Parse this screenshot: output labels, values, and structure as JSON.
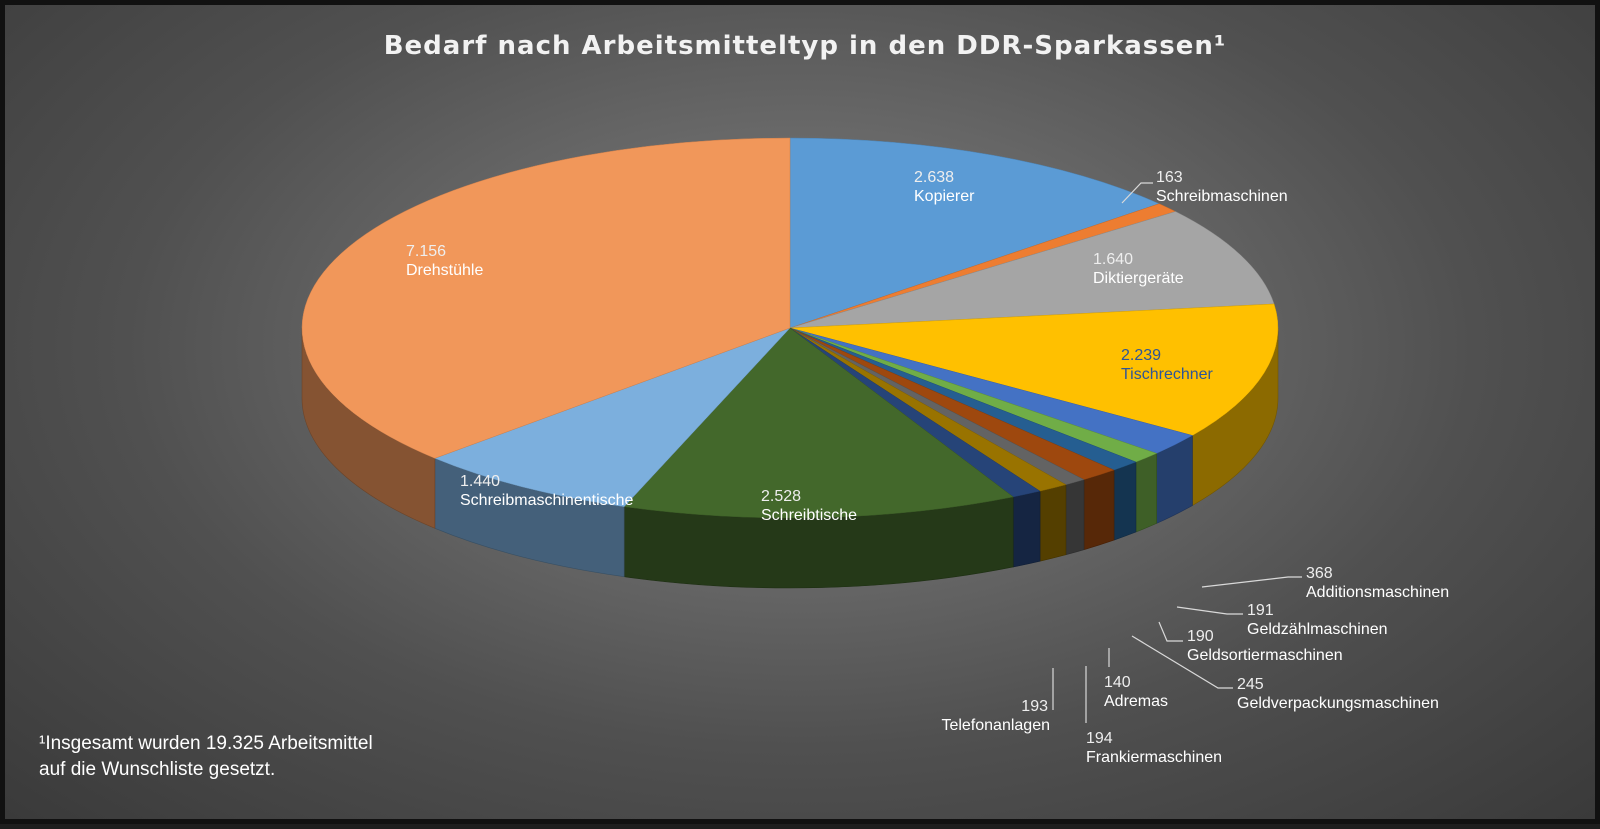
{
  "chart_data": {
    "type": "pie",
    "title": "Bedarf nach Arbeitsmitteltyp in den DDR-Sparkassen¹",
    "three_d": true,
    "slices": [
      {
        "label": "Kopierer",
        "value": 2638,
        "value_text": "2.638",
        "color": "#5b9bd5"
      },
      {
        "label": "Schreibmaschinen",
        "value": 163,
        "value_text": "163",
        "color": "#ed7d31"
      },
      {
        "label": "Diktiergeräte",
        "value": 1640,
        "value_text": "1.640",
        "color": "#a5a5a5"
      },
      {
        "label": "Tischrechner",
        "value": 2239,
        "value_text": "2.239",
        "color": "#ffc000"
      },
      {
        "label": "Additionsmaschinen",
        "value": 368,
        "value_text": "368",
        "color": "#4472c4"
      },
      {
        "label": "Geldzählmaschinen",
        "value": 191,
        "value_text": "191",
        "color": "#70ad47"
      },
      {
        "label": "Geldsortiermaschinen",
        "value": 190,
        "value_text": "190",
        "color": "#255e91"
      },
      {
        "label": "Geldverpackungsmaschinen",
        "value": 245,
        "value_text": "245",
        "color": "#9e480e"
      },
      {
        "label": "Adremas",
        "value": 140,
        "value_text": "140",
        "color": "#636363"
      },
      {
        "label": "Frankiermaschinen",
        "value": 194,
        "value_text": "194",
        "color": "#997300"
      },
      {
        "label": "Telefonanlagen",
        "value": 193,
        "value_text": "193",
        "color": "#264478"
      },
      {
        "label": "Schreibtische",
        "value": 2528,
        "value_text": "2.528",
        "color": "#43682b"
      },
      {
        "label": "Schreibmaschinentische",
        "value": 1440,
        "value_text": "1.440",
        "color": "#7cafdd"
      },
      {
        "label": "Drehstühle",
        "value": 7156,
        "value_text": "7.156",
        "color": "#f1975a"
      }
    ]
  },
  "footnote": {
    "line1": "¹Insgesamt wurden 19.325 Arbeitsmittel",
    "line2": "auf die Wunschliste gesetzt."
  }
}
